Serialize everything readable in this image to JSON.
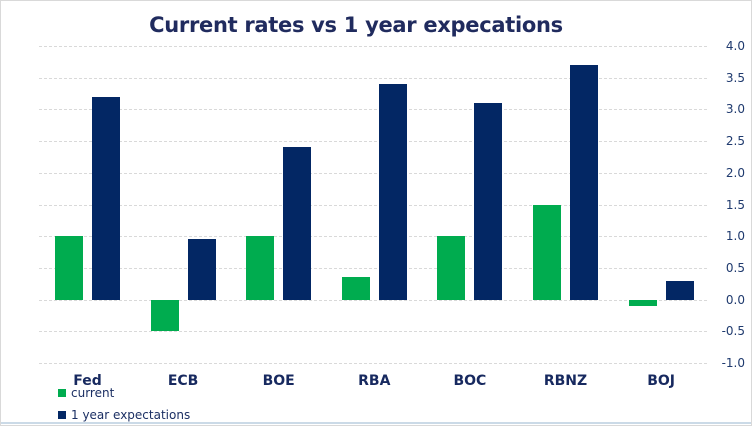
{
  "chart_data": {
    "type": "bar",
    "title": "Current rates vs 1 year expecations",
    "categories": [
      "Fed",
      "ECB",
      "BOE",
      "RBA",
      "BOC",
      "RBNZ",
      "BOJ"
    ],
    "series": [
      {
        "name": "current",
        "color": "#00ac4f",
        "values": [
          1.0,
          -0.5,
          1.0,
          0.35,
          1.0,
          1.5,
          -0.1
        ]
      },
      {
        "name": "1 year expectations",
        "color": "#032764",
        "values": [
          3.2,
          0.95,
          2.4,
          3.4,
          3.1,
          3.7,
          0.3
        ]
      }
    ],
    "y_axis": {
      "min": -1.0,
      "max": 4.0,
      "step": 0.5,
      "side": "right",
      "tick_labels": [
        "4.0",
        "3.5",
        "3.0",
        "2.5",
        "2.0",
        "1.5",
        "1.0",
        "0.5",
        "0.0",
        "-0.5",
        "-1.0"
      ]
    },
    "grid": {
      "horizontal": "dashed"
    },
    "legend": {
      "position": "bottom-left",
      "items": [
        {
          "label": "current",
          "color": "#00ac4f"
        },
        {
          "label": "1 year expectations",
          "color": "#032764"
        }
      ]
    }
  },
  "colors": {
    "background": "#ffffff",
    "frame_border": "#d9d9d9",
    "bottom_strip": "#cbdae7",
    "gridline": "#d9d9d9",
    "title_text": "#202b5e",
    "axis_text": "#1f3a6e",
    "category_text": "#17295f",
    "legend_text": "#1b2f63"
  }
}
